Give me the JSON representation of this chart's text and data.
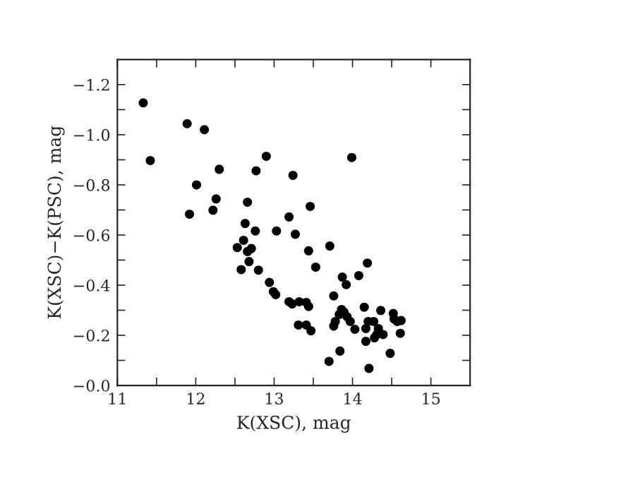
{
  "chart_data": {
    "type": "scatter",
    "xlabel": "K(XSC), mag",
    "ylabel": "K(XSC)−K(PSC), mag",
    "xlim": [
      11,
      15.5
    ],
    "ylim": [
      0.0,
      -1.3
    ],
    "xticks": [
      11,
      {
        "value": 11.5,
        "label": null
      },
      12,
      {
        "value": 12.5,
        "label": null
      },
      13,
      {
        "value": 13.5,
        "label": null
      },
      14,
      {
        "value": 14.5,
        "label": null
      },
      15
    ],
    "yticks": [
      {
        "value": 0,
        "label": "−0.0"
      },
      {
        "value": -0.1,
        "label": null
      },
      {
        "value": -0.2,
        "label": "−0.2"
      },
      {
        "value": -0.3,
        "label": null
      },
      {
        "value": -0.4,
        "label": "−0.4"
      },
      {
        "value": -0.5,
        "label": null
      },
      {
        "value": -0.6,
        "label": "−0.6"
      },
      {
        "value": -0.7,
        "label": null
      },
      {
        "value": -0.8,
        "label": "−0.8"
      },
      {
        "value": -0.9,
        "label": null
      },
      {
        "value": -1.0,
        "label": "−1.0"
      },
      {
        "value": -1.1,
        "label": null
      },
      {
        "value": -1.2,
        "label": "−1.2"
      }
    ],
    "marker": "circle",
    "grid": false,
    "legend": false,
    "series": [
      {
        "color": "#000000",
        "x": [
          11.33,
          11.89,
          12.11,
          11.42,
          12.9,
          12.3,
          12.77,
          13.24,
          12.01,
          12.26,
          12.66,
          13.46,
          11.92,
          12.22,
          13.19,
          12.63,
          12.76,
          13.03,
          13.27,
          12.61,
          13.99,
          12.53,
          12.71,
          12.66,
          12.68,
          12.58,
          12.8,
          13.44,
          13.53,
          12.94,
          12.99,
          13.02,
          13.19,
          13.23,
          13.32,
          13.41,
          13.44,
          13.31,
          13.41,
          13.47,
          13.71,
          14.19,
          13.87,
          14.08,
          13.92,
          13.76,
          13.86,
          13.89,
          13.83,
          13.93,
          13.97,
          13.78,
          13.76,
          14.03,
          14.15,
          14.36,
          14.2,
          14.27,
          14.17,
          14.33,
          14.31,
          14.39,
          14.17,
          14.28,
          14.52,
          14.53,
          14.57,
          14.62,
          14.61,
          14.48,
          13.84,
          13.7,
          14.21
        ],
        "values": [
          -1.127,
          -1.044,
          -1.02,
          -0.897,
          -0.914,
          -0.862,
          -0.856,
          -0.838,
          -0.8,
          -0.744,
          -0.731,
          -0.714,
          -0.683,
          -0.699,
          -0.672,
          -0.646,
          -0.616,
          -0.616,
          -0.603,
          -0.579,
          -0.909,
          -0.55,
          -0.546,
          -0.534,
          -0.494,
          -0.462,
          -0.46,
          -0.537,
          -0.472,
          -0.411,
          -0.374,
          -0.362,
          -0.334,
          -0.325,
          -0.334,
          -0.331,
          -0.315,
          -0.241,
          -0.241,
          -0.218,
          -0.556,
          -0.488,
          -0.432,
          -0.438,
          -0.402,
          -0.357,
          -0.303,
          -0.293,
          -0.283,
          -0.274,
          -0.255,
          -0.255,
          -0.237,
          -0.224,
          -0.312,
          -0.299,
          -0.255,
          -0.255,
          -0.227,
          -0.227,
          -0.203,
          -0.203,
          -0.176,
          -0.19,
          -0.287,
          -0.265,
          -0.255,
          -0.259,
          -0.208,
          -0.128,
          -0.137,
          -0.096,
          -0.068
        ]
      }
    ]
  }
}
